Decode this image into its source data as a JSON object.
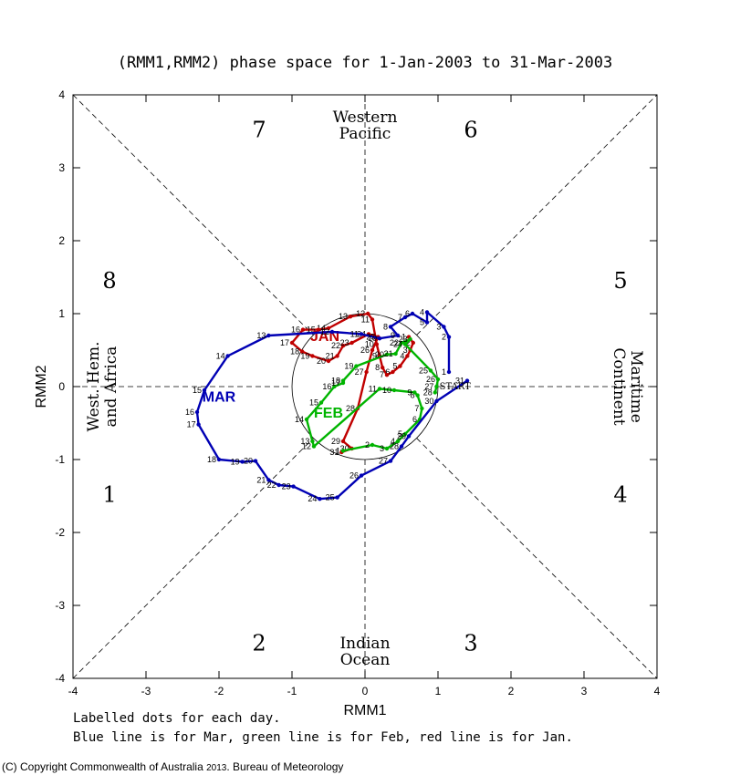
{
  "chart_data": {
    "type": "line",
    "title": "(RMM1,RMM2) phase space for  1-Jan-2003 to 31-Mar-2003",
    "xlabel": "RMM1",
    "ylabel": "RMM2",
    "xlim": [
      -4,
      4
    ],
    "ylim": [
      -4,
      4
    ],
    "x_ticks": [
      "-4",
      "-3",
      "-2",
      "-1",
      "0",
      "1",
      "2",
      "3",
      "4"
    ],
    "y_ticks": [
      "-4",
      "-3",
      "-2",
      "-1",
      "0",
      "1",
      "2",
      "3",
      "4"
    ],
    "phases": [
      {
        "label": "1",
        "x": -3.5,
        "y": -1.48
      },
      {
        "label": "2",
        "x": -1.45,
        "y": -3.52
      },
      {
        "label": "3",
        "x": 1.45,
        "y": -3.52
      },
      {
        "label": "4",
        "x": 3.5,
        "y": -1.48
      },
      {
        "label": "5",
        "x": 3.5,
        "y": 1.45
      },
      {
        "label": "6",
        "x": 1.45,
        "y": 3.52
      },
      {
        "label": "7",
        "x": -1.45,
        "y": 3.52
      },
      {
        "label": "8",
        "x": -3.5,
        "y": 1.45
      }
    ],
    "regions": {
      "top": [
        "Western",
        "Pacific"
      ],
      "bottom": [
        "Indian",
        "Ocean"
      ],
      "left": [
        "West. Hem.",
        "and Africa"
      ],
      "right": [
        "Maritime",
        "Continent"
      ]
    },
    "start_label": "START",
    "series": [
      {
        "name": "JAN",
        "color": "#c00000",
        "label_pos": [
          -0.55,
          0.7
        ],
        "points": [
          {
            "d": "1",
            "x": 0.6,
            "y": 0.68
          },
          {
            "d": "2",
            "x": 0.66,
            "y": 0.6
          },
          {
            "d": "3",
            "x": 0.62,
            "y": 0.5
          },
          {
            "d": "4",
            "x": 0.58,
            "y": 0.42
          },
          {
            "d": "5",
            "x": 0.48,
            "y": 0.28
          },
          {
            "d": "6",
            "x": 0.38,
            "y": 0.2
          },
          {
            "d": "7",
            "x": 0.3,
            "y": 0.16
          },
          {
            "d": "8",
            "x": 0.24,
            "y": 0.26
          },
          {
            "d": "9",
            "x": 0.2,
            "y": 0.42
          },
          {
            "d": "10",
            "x": 0.16,
            "y": 0.58
          },
          {
            "d": "11",
            "x": 0.1,
            "y": 0.92
          },
          {
            "d": "12",
            "x": 0.04,
            "y": 1.0
          },
          {
            "d": "13",
            "x": -0.2,
            "y": 0.96
          },
          {
            "d": "14",
            "x": -0.5,
            "y": 0.8
          },
          {
            "d": "15",
            "x": -0.64,
            "y": 0.78
          },
          {
            "d": "16",
            "x": -0.85,
            "y": 0.78
          },
          {
            "d": "17",
            "x": -1.0,
            "y": 0.6
          },
          {
            "d": "18",
            "x": -0.86,
            "y": 0.48
          },
          {
            "d": "19",
            "x": -0.72,
            "y": 0.42
          },
          {
            "d": "20",
            "x": -0.5,
            "y": 0.35
          },
          {
            "d": "21",
            "x": -0.38,
            "y": 0.42
          },
          {
            "d": "22",
            "x": -0.3,
            "y": 0.56
          },
          {
            "d": "23",
            "x": -0.18,
            "y": 0.6
          },
          {
            "d": "24",
            "x": 0.05,
            "y": 0.72
          },
          {
            "d": "25",
            "x": 0.18,
            "y": 0.68
          },
          {
            "d": "26",
            "x": 0.1,
            "y": 0.5
          },
          {
            "d": "27",
            "x": 0.02,
            "y": 0.2
          },
          {
            "d": "28",
            "x": -0.1,
            "y": -0.3
          },
          {
            "d": "29",
            "x": -0.3,
            "y": -0.75
          },
          {
            "d": "30",
            "x": -0.18,
            "y": -0.85
          },
          {
            "d": "31",
            "x": -0.32,
            "y": -0.9
          }
        ]
      },
      {
        "name": "FEB",
        "color": "#00b400",
        "label_pos": [
          -0.5,
          -0.35
        ],
        "points": [
          {
            "d": "1",
            "x": -0.3,
            "y": -0.88
          },
          {
            "d": "2",
            "x": 0.1,
            "y": -0.8
          },
          {
            "d": "3",
            "x": 0.3,
            "y": -0.85
          },
          {
            "d": "4",
            "x": 0.45,
            "y": -0.75
          },
          {
            "d": "5",
            "x": 0.55,
            "y": -0.65
          },
          {
            "d": "6",
            "x": 0.75,
            "y": -0.45
          },
          {
            "d": "7",
            "x": 0.78,
            "y": -0.3
          },
          {
            "d": "8",
            "x": 0.72,
            "y": -0.12
          },
          {
            "d": "9",
            "x": 0.68,
            "y": -0.08
          },
          {
            "d": "10",
            "x": 0.4,
            "y": -0.05
          },
          {
            "d": "11",
            "x": 0.2,
            "y": -0.03
          },
          {
            "d": "12",
            "x": -0.7,
            "y": -0.82
          },
          {
            "d": "13",
            "x": -0.72,
            "y": -0.75
          },
          {
            "d": "14",
            "x": -0.8,
            "y": -0.45
          },
          {
            "d": "15",
            "x": -0.6,
            "y": -0.22
          },
          {
            "d": "16",
            "x": -0.42,
            "y": 0.0
          },
          {
            "d": "17",
            "x": -0.3,
            "y": 0.05
          },
          {
            "d": "18",
            "x": -0.3,
            "y": 0.08
          },
          {
            "d": "19",
            "x": -0.12,
            "y": 0.28
          },
          {
            "d": "20",
            "x": 0.3,
            "y": 0.44
          },
          {
            "d": "21",
            "x": 0.42,
            "y": 0.45
          },
          {
            "d": "22",
            "x": 0.5,
            "y": 0.6
          },
          {
            "d": "23",
            "x": 0.62,
            "y": 0.65
          },
          {
            "d": "24",
            "x": 0.55,
            "y": 0.58
          },
          {
            "d": "25",
            "x": 0.9,
            "y": 0.22
          },
          {
            "d": "26",
            "x": 1.0,
            "y": 0.1
          },
          {
            "d": "27",
            "x": 0.98,
            "y": 0.0
          },
          {
            "d": "28",
            "x": 0.96,
            "y": -0.08
          }
        ]
      },
      {
        "name": "MAR",
        "color": "#0000b4",
        "label_pos": [
          -2.0,
          -0.13
        ],
        "points": [
          {
            "d": "1",
            "x": 1.15,
            "y": 0.2
          },
          {
            "d": "2",
            "x": 1.15,
            "y": 0.68
          },
          {
            "d": "3",
            "x": 1.08,
            "y": 0.82
          },
          {
            "d": "4",
            "x": 0.85,
            "y": 1.02
          },
          {
            "d": "5",
            "x": 0.85,
            "y": 0.88
          },
          {
            "d": "6",
            "x": 0.65,
            "y": 1.0
          },
          {
            "d": "7",
            "x": 0.55,
            "y": 0.95
          },
          {
            "d": "8",
            "x": 0.35,
            "y": 0.82
          },
          {
            "d": "9",
            "x": 0.45,
            "y": 0.7
          },
          {
            "d": "10",
            "x": 0.2,
            "y": 0.66
          },
          {
            "d": "11",
            "x": -0.05,
            "y": 0.72
          },
          {
            "d": "12",
            "x": -0.45,
            "y": 0.75
          },
          {
            "d": "13",
            "x": -1.32,
            "y": 0.7
          },
          {
            "d": "14",
            "x": -1.88,
            "y": 0.42
          },
          {
            "d": "15",
            "x": -2.2,
            "y": -0.05
          },
          {
            "d": "16",
            "x": -2.3,
            "y": -0.35
          },
          {
            "d": "17",
            "x": -2.28,
            "y": -0.52
          },
          {
            "d": "18",
            "x": -2.0,
            "y": -1.0
          },
          {
            "d": "19",
            "x": -1.68,
            "y": -1.03
          },
          {
            "d": "20",
            "x": -1.5,
            "y": -1.02
          },
          {
            "d": "21",
            "x": -1.32,
            "y": -1.28
          },
          {
            "d": "22",
            "x": -1.18,
            "y": -1.35
          },
          {
            "d": "23",
            "x": -0.98,
            "y": -1.37
          },
          {
            "d": "24",
            "x": -0.62,
            "y": -1.54
          },
          {
            "d": "25",
            "x": -0.38,
            "y": -1.52
          },
          {
            "d": "26",
            "x": -0.05,
            "y": -1.22
          },
          {
            "d": "27",
            "x": 0.35,
            "y": -1.02
          },
          {
            "d": "28",
            "x": 0.5,
            "y": -0.82
          },
          {
            "d": "29",
            "x": 0.6,
            "y": -0.68
          },
          {
            "d": "30",
            "x": 0.98,
            "y": -0.2
          },
          {
            "d": "31",
            "x": 1.4,
            "y": 0.08
          }
        ]
      }
    ],
    "grid": false,
    "legend": "none"
  },
  "notes": {
    "line1": "Labelled dots for each day.",
    "line2": "Blue line is for Mar, green line is for Feb, red line is for Jan."
  },
  "copyright": {
    "prefix": "(C) Copyright Commonwealth of Australia",
    "year": "2013",
    "suffix": ". Bureau of Meteorology"
  }
}
